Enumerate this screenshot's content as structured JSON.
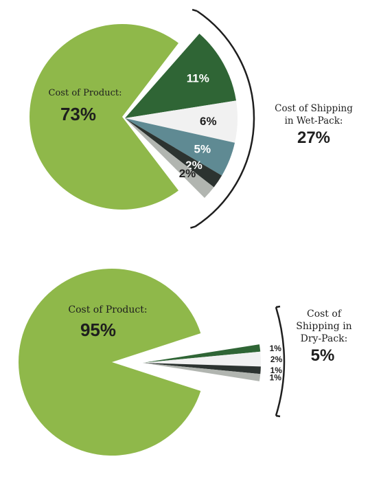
{
  "chart_data": [
    {
      "type": "pie",
      "title": "",
      "product": {
        "label": "Cost of Product:",
        "value": 73,
        "value_label": "73%",
        "color": "#8fb84a"
      },
      "shipping": {
        "label_line1": "Cost of Shipping",
        "label_line2": "in Wet-Pack:",
        "value": 27,
        "value_label": "27%",
        "slices": [
          {
            "value": 11,
            "label": "11%",
            "color": "#2f6535"
          },
          {
            "value": 6,
            "label": "6%",
            "color": "#f1f1f1"
          },
          {
            "value": 5,
            "label": "5%",
            "color": "#5f8a93"
          },
          {
            "value": 2,
            "label": "2%",
            "color": "#2c3330"
          },
          {
            "value": 2,
            "label": "2%",
            "color": "#b1b5b0"
          }
        ]
      }
    },
    {
      "type": "pie",
      "title": "",
      "product": {
        "label": "Cost of Product:",
        "value": 95,
        "value_label": "95%",
        "color": "#8fb84a"
      },
      "shipping": {
        "label_line1": "Cost of",
        "label_line2": "Shipping in",
        "label_line3": "Dry-Pack:",
        "value": 5,
        "value_label": "5%",
        "slices": [
          {
            "value": 1,
            "label": "1%",
            "color": "#2f6535"
          },
          {
            "value": 2,
            "label": "2%",
            "color": "#f1f1f1"
          },
          {
            "value": 1,
            "label": "1%",
            "color": "#2c3330"
          },
          {
            "value": 1,
            "label": "1%",
            "color": "#b1b5b0"
          }
        ]
      }
    }
  ]
}
